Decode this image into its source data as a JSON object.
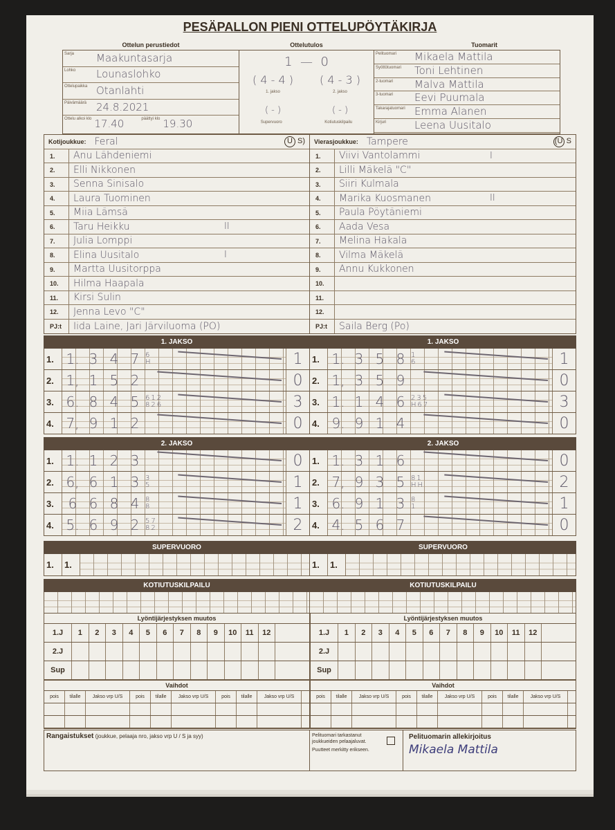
{
  "title": "PESÄPALLON PIENI OTTELUPÖYTÄKIRJA",
  "basic": {
    "caption": "Ottelun perustiedot",
    "fields": [
      {
        "label": "Sarja",
        "value": "Maakuntasarja"
      },
      {
        "label": "Lohko",
        "value": "Lounaslohko"
      },
      {
        "label": "Ottelupaikka",
        "value": "Otanlahti"
      },
      {
        "label": "Päivämäärä",
        "value": "24.8.2021"
      }
    ],
    "start_label": "Ottelu alkoi klo",
    "start": "17.40",
    "end_label": "päättyi klo",
    "end": "19.30"
  },
  "result": {
    "caption": "Ottelutulos",
    "home": "1",
    "away": "0",
    "p1": "( 4 - 4 )",
    "p2": "( 4 - 3 )",
    "p1_label": "1. jakso",
    "p2_label": "2. jakso",
    "sv": "(   -   )",
    "kk": "(   -   )",
    "sv_label": "Supervuoro",
    "kk_label": "Kotiutuskilpailu"
  },
  "referees": {
    "caption": "Tuomarit",
    "items": [
      {
        "label": "Pelituomari",
        "value": "Mikaela Mattila"
      },
      {
        "label": "Syöttötuomari",
        "value": "Toni Lehtinen"
      },
      {
        "label": "2-tuomari",
        "value": "Malva Mattila"
      },
      {
        "label": "3-tuomari",
        "value": "Eevi Puumala"
      },
      {
        "label": "Takarajatuomari",
        "value": "Emma Alanen"
      },
      {
        "label": "Kirjuri",
        "value": "Leena Uusitalo"
      }
    ]
  },
  "home": {
    "label": "Kotijoukkue:",
    "name": "Feral",
    "us_u": "U",
    "us_s": "S)",
    "coach_label": "PJ:t",
    "coach": "Iida Laine, Jari Järviluoma (PO)",
    "players": [
      {
        "no": "1.",
        "name": "Anu Lähdeniemi",
        "mark": ""
      },
      {
        "no": "2.",
        "name": "Elli Nikkonen",
        "mark": ""
      },
      {
        "no": "3.",
        "name": "Senna Sinisalo",
        "mark": ""
      },
      {
        "no": "4.",
        "name": "Laura Tuominen",
        "mark": ""
      },
      {
        "no": "5.",
        "name": "Miia Lämsä",
        "mark": ""
      },
      {
        "no": "6.",
        "name": "Taru Heikku",
        "mark": "II"
      },
      {
        "no": "7.",
        "name": "Julia Lomppi",
        "mark": ""
      },
      {
        "no": "8.",
        "name": "Elina Uusitalo",
        "mark": "I"
      },
      {
        "no": "9.",
        "name": "Martta Uusitorppa",
        "mark": ""
      },
      {
        "no": "10.",
        "name": "Hilma Haapala",
        "mark": ""
      },
      {
        "no": "11.",
        "name": "Kirsi Sulin",
        "mark": ""
      },
      {
        "no": "12.",
        "name": "Jenna Levo \"C\"",
        "mark": ""
      }
    ]
  },
  "away": {
    "label": "Vierasjoukkue:",
    "name": "Tampere",
    "us_u": "(U",
    "us_s": "S",
    "coach_label": "PJ:t",
    "coach": "Saila Berg (Po)",
    "players": [
      {
        "no": "1.",
        "name": "Viivi Vantolammi",
        "mark": "I"
      },
      {
        "no": "2.",
        "name": "Lilli Mäkelä \"C\"",
        "mark": ""
      },
      {
        "no": "3.",
        "name": "Siiri Kulmala",
        "mark": ""
      },
      {
        "no": "4.",
        "name": "Marika Kuosmanen",
        "mark": "II"
      },
      {
        "no": "5.",
        "name": "Paula Pöytäniemi",
        "mark": ""
      },
      {
        "no": "6.",
        "name": "Aada Vesa",
        "mark": ""
      },
      {
        "no": "7.",
        "name": "Melina Hakala",
        "mark": ""
      },
      {
        "no": "8.",
        "name": "Vilma Mäkelä",
        "mark": ""
      },
      {
        "no": "9.",
        "name": "Annu Kukkonen",
        "mark": ""
      },
      {
        "no": "10.",
        "name": "",
        "mark": ""
      },
      {
        "no": "11.",
        "name": "",
        "mark": ""
      },
      {
        "no": "12.",
        "name": "",
        "mark": ""
      }
    ]
  },
  "periods": [
    {
      "title": "1. JAKSO",
      "home": [
        {
          "no": "1.",
          "entries": [
            "1.",
            "3",
            "4",
            "7"
          ],
          "mt": "6",
          "mb": "H",
          "runs": "1"
        },
        {
          "no": "2.",
          "entries": [
            "1,",
            "1",
            "5",
            "2"
          ],
          "mt": "",
          "mb": "",
          "runs": "0"
        },
        {
          "no": "3.",
          "entries": [
            "6.",
            "8",
            "4",
            "5"
          ],
          "mt": "612",
          "mb": "826",
          "runs": "3"
        },
        {
          "no": "4.",
          "entries": [
            "7,",
            "9",
            "1",
            "2"
          ],
          "mt": "",
          "mb": "",
          "runs": "0"
        }
      ],
      "away": [
        {
          "no": "1.",
          "entries": [
            "1.",
            "3",
            "5",
            "8"
          ],
          "mt": "1",
          "mb": "6",
          "runs": "1"
        },
        {
          "no": "2.",
          "entries": [
            "1,",
            "3",
            "5",
            "9"
          ],
          "mt": "",
          "mb": "",
          "runs": "0"
        },
        {
          "no": "3.",
          "entries": [
            "1.",
            "1",
            "4",
            "6"
          ],
          "mt": "235",
          "mb": "H67",
          "runs": "3"
        },
        {
          "no": "4.",
          "entries": [
            "9.",
            "9",
            "1",
            "4"
          ],
          "mt": "",
          "mb": "",
          "runs": "0"
        }
      ]
    },
    {
      "title": "2. JAKSO",
      "home": [
        {
          "no": "1.",
          "entries": [
            "1.",
            "1",
            "2",
            "3"
          ],
          "mt": "",
          "mb": "",
          "runs": "0"
        },
        {
          "no": "2.",
          "entries": [
            "6,",
            "6",
            "1",
            "3"
          ],
          "mt": "3",
          "mb": "5",
          "runs": "1"
        },
        {
          "no": "3.",
          "entries": [
            "6",
            "6",
            "8",
            "4"
          ],
          "mt": "8",
          "mb": "8",
          "runs": "1"
        },
        {
          "no": "4.",
          "entries": [
            "5.",
            "6",
            "9",
            "2"
          ],
          "mt": "57",
          "mb": "82",
          "runs": "2"
        }
      ],
      "away": [
        {
          "no": "1.",
          "entries": [
            "1.",
            "3",
            "1",
            "6"
          ],
          "mt": "",
          "mb": "",
          "runs": "0"
        },
        {
          "no": "2.",
          "entries": [
            "7,",
            "9",
            "3",
            "5"
          ],
          "mt": "81",
          "mb": "HH",
          "runs": "2"
        },
        {
          "no": "3.",
          "entries": [
            "6.",
            "9",
            "1",
            "3"
          ],
          "mt": "8",
          "mb": "1",
          "runs": "1"
        },
        {
          "no": "4.",
          "entries": [
            "4.",
            "5",
            "6",
            "7"
          ],
          "mt": "",
          "mb": "",
          "runs": "0"
        }
      ]
    }
  ],
  "super": {
    "title": "SUPERVUORO",
    "home": {
      "no": "1.",
      "entry": "1."
    },
    "away": {
      "no": "1.",
      "entry": "1."
    }
  },
  "kotiutus": {
    "title": "KOTIUTUSKILPAILU"
  },
  "order_change": {
    "title": "Lyöntijärjestyksen muutos",
    "rows": [
      "1.J",
      "2.J",
      "Sup"
    ],
    "cols": [
      "1",
      "2",
      "3",
      "4",
      "5",
      "6",
      "7",
      "8",
      "9",
      "10",
      "11",
      "12"
    ]
  },
  "subs": {
    "title": "Vaihdot",
    "cols": [
      "pois",
      "tilalle",
      "Jakso vrp U/S",
      "pois",
      "tilalle",
      "Jakso vrp U/S",
      "pois",
      "tilalle",
      "Jakso vrp U/S"
    ]
  },
  "penalties": {
    "label": "Rangaistukset",
    "hint": "(joukkue, pelaaja nro, jakso vrp U / S ja syy)"
  },
  "check": {
    "line1": "Pelituomari tarkastanut joukkueiden pelaajaluvat.",
    "line2": "Puutteet merkitty erikseen."
  },
  "signature": {
    "label": "Pelituomarin allekirjoitus",
    "value": "Mikaela Mattila"
  }
}
